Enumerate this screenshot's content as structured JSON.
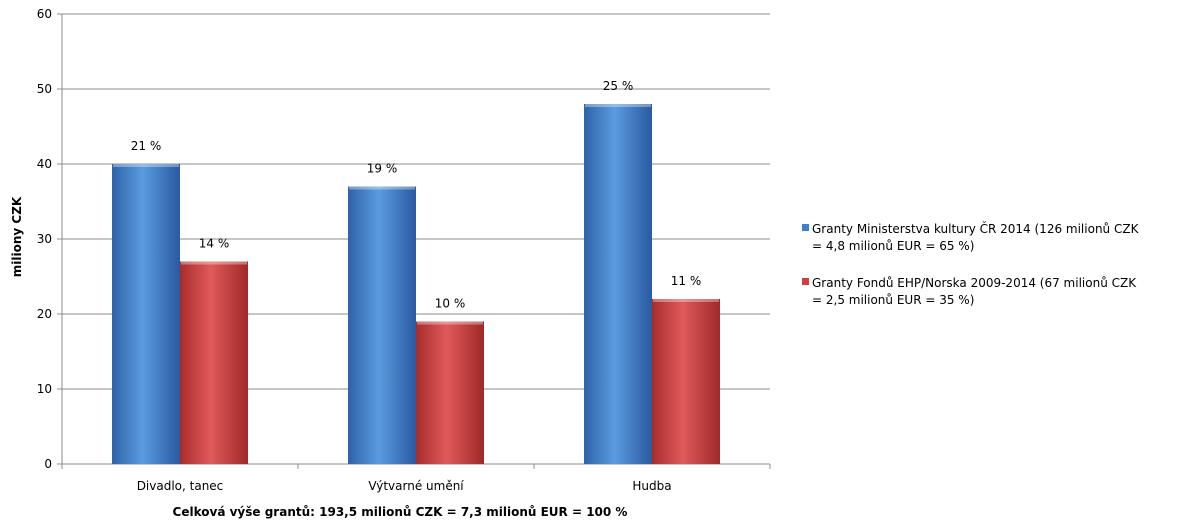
{
  "chart_data": {
    "type": "bar",
    "categories": [
      "Divadlo, tanec",
      "Výtvarné umění",
      "Hudba"
    ],
    "series": [
      {
        "name": "Granty Ministerstva kultury ČR 2014 (126 milionů CZK\n= 4,8 milionů EUR = 65 %)",
        "values": [
          40,
          37,
          48
        ],
        "labels": [
          "21 %",
          "19 %",
          "25 %"
        ],
        "color": "#3f7fcf"
      },
      {
        "name": "Granty Fondů EHP/Norska 2009-2014 (67 milionů CZK\n= 2,5 milionů EUR = 35 %)",
        "values": [
          27,
          19,
          22
        ],
        "labels": [
          "14 %",
          "10 %",
          "11 %"
        ],
        "color": "#cf3f3f"
      }
    ],
    "ylabel": "miliony CZK",
    "xlabel": "Celková výše grantů: 193,5 milionů CZK = 7,3 milionů EUR = 100 %",
    "ylim": [
      0,
      60
    ],
    "yticks": [
      0,
      10,
      20,
      30,
      40,
      50,
      60
    ],
    "grid": true,
    "legend_position": "right"
  }
}
